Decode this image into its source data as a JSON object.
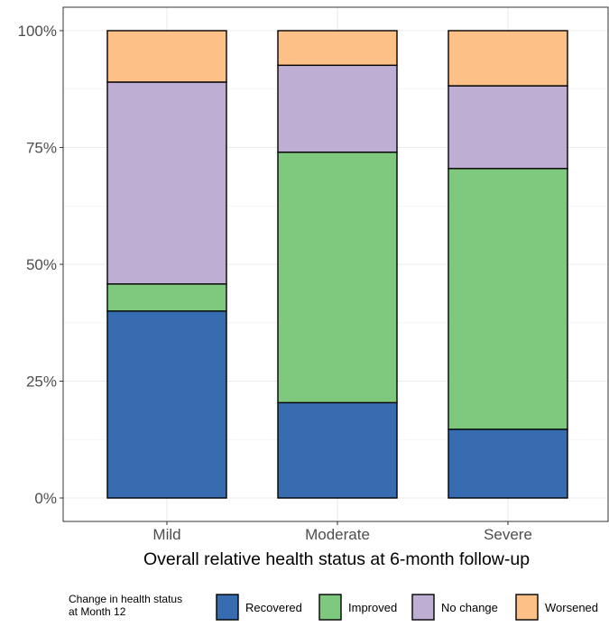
{
  "chart_data": {
    "type": "bar",
    "stacked": true,
    "title": "",
    "xlabel": "Overall relative health status at 6-month follow-up",
    "ylabel": "",
    "categories": [
      "Mild",
      "Moderate",
      "Severe"
    ],
    "ylim": [
      0,
      100
    ],
    "y_ticks": [
      "0%",
      "25%",
      "50%",
      "75%",
      "100%"
    ],
    "grid": true,
    "legend": {
      "title_lines": [
        "Change in health status",
        "at Month 12"
      ],
      "position": "bottom"
    },
    "series": [
      {
        "name": "Recovered",
        "color": "#386cb0",
        "values": [
          40.0,
          20.4,
          14.7
        ]
      },
      {
        "name": "Improved",
        "color": "#7fc97f",
        "values": [
          5.8,
          53.6,
          55.8
        ]
      },
      {
        "name": "No change",
        "color": "#beaed4",
        "values": [
          43.2,
          18.6,
          17.7
        ]
      },
      {
        "name": "Worsened",
        "color": "#fdc086",
        "values": [
          11.0,
          7.4,
          11.8
        ]
      }
    ]
  }
}
